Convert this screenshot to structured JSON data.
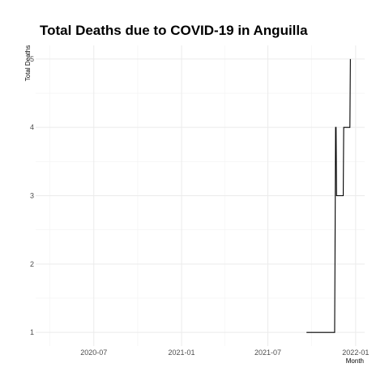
{
  "chart_data": {
    "type": "line",
    "title": "Total Deaths due to COVID-19 in Anguilla",
    "xlabel": "Month",
    "ylabel": "Total Deaths",
    "x_type": "date",
    "xlim": [
      "2020-03-01",
      "2022-01-20"
    ],
    "ylim": [
      0.8,
      5.2
    ],
    "x_ticks": [
      "2020-07-01",
      "2021-01-01",
      "2021-07-01",
      "2022-01-01"
    ],
    "x_tick_labels": [
      "2020-07",
      "2021-01",
      "2021-07",
      "2022-01"
    ],
    "y_ticks": [
      1,
      2,
      3,
      4,
      5
    ],
    "y_tick_labels": [
      "1",
      "2",
      "3",
      "4",
      "5"
    ],
    "grid": true,
    "legend": false,
    "line_color": "#000000",
    "grid_color": "#ebebeb",
    "series": [
      {
        "x": [
          "2021-09-20",
          "2021-11-18",
          "2021-11-20",
          "2021-11-21",
          "2021-11-22",
          "2021-12-06",
          "2021-12-07",
          "2021-12-20",
          "2021-12-21"
        ],
        "y": [
          1,
          1,
          4,
          4,
          3,
          3,
          4,
          4,
          5
        ]
      }
    ]
  }
}
